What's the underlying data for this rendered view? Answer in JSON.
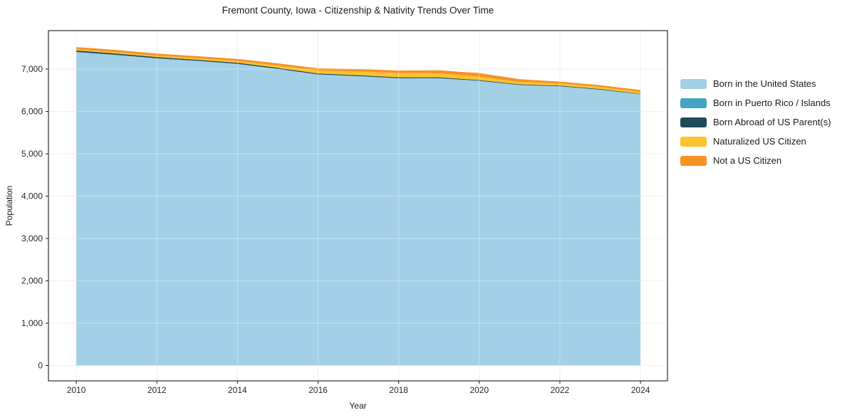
{
  "title": "Fremont County, Iowa - Citizenship & Nativity Trends Over Time",
  "chart_data": {
    "type": "area",
    "stacked": true,
    "title": "Fremont County, Iowa - Citizenship & Nativity Trends Over Time",
    "xlabel": "Year",
    "ylabel": "Population",
    "grid": true,
    "legend_position": "right",
    "x": [
      2010,
      2011,
      2012,
      2013,
      2014,
      2015,
      2016,
      2017,
      2018,
      2019,
      2020,
      2021,
      2022,
      2023,
      2024
    ],
    "series": [
      {
        "name": "Born in the United States",
        "color": "#a3d0e6",
        "values": [
          7400,
          7330,
          7250,
          7190,
          7120,
          7000,
          6870,
          6830,
          6780,
          6780,
          6720,
          6620,
          6590,
          6510,
          6400
        ]
      },
      {
        "name": "Born in Puerto Rico / Islands",
        "color": "#44a2c4",
        "values": [
          5,
          5,
          5,
          5,
          5,
          5,
          5,
          5,
          5,
          5,
          5,
          5,
          5,
          5,
          5
        ]
      },
      {
        "name": "Born Abroad of US Parent(s)",
        "color": "#1f4a5c",
        "values": [
          35,
          30,
          30,
          25,
          25,
          25,
          20,
          20,
          20,
          20,
          15,
          15,
          15,
          15,
          10
        ]
      },
      {
        "name": "Naturalized US Citizen",
        "color": "#fcc32c",
        "values": [
          25,
          30,
          30,
          35,
          40,
          50,
          70,
          90,
          100,
          95,
          80,
          55,
          50,
          45,
          45
        ]
      },
      {
        "name": "Not a US Citizen",
        "color": "#f59324",
        "values": [
          55,
          55,
          50,
          50,
          50,
          55,
          55,
          55,
          60,
          70,
          85,
          65,
          45,
          45,
          45
        ]
      }
    ],
    "xticks": {
      "values": [
        2010,
        2012,
        2014,
        2016,
        2018,
        2020,
        2022,
        2024
      ],
      "labels": [
        "2010",
        "2012",
        "2014",
        "2016",
        "2018",
        "2020",
        "2022",
        "2024"
      ]
    },
    "yticks": {
      "values": [
        0,
        1000,
        2000,
        3000,
        4000,
        5000,
        6000,
        7000
      ],
      "labels": [
        "0",
        "1,000",
        "2,000",
        "3,000",
        "4,000",
        "5,000",
        "6,000",
        "7,000"
      ]
    },
    "xlim": [
      2009.31,
      2024.67
    ],
    "ylim": [
      -361,
      7908
    ]
  },
  "colors": {
    "frame": "#1a1a1a",
    "grid": "#e9e9e9",
    "tick_label": "#262626"
  }
}
